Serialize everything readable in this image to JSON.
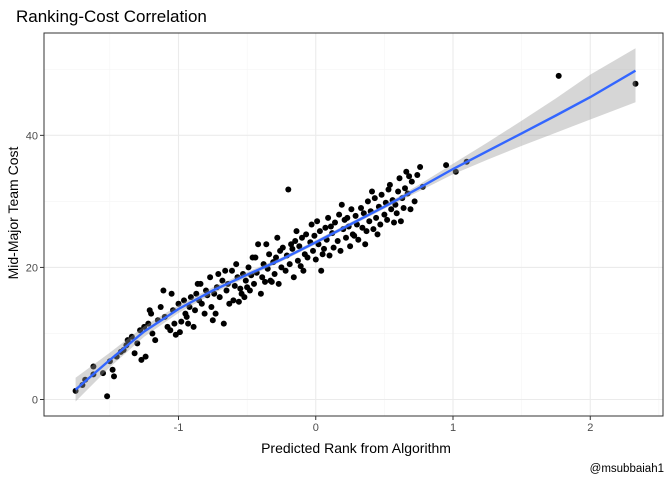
{
  "chart_data": {
    "type": "scatter",
    "title": "Ranking-Cost Correlation",
    "xlabel": "Predicted Rank from Algorithm",
    "ylabel": "Mid-Major Team Cost",
    "caption": "@msubbaiah1",
    "xlim": [
      -1.98,
      2.53
    ],
    "ylim": [
      -2.5,
      55.5
    ],
    "x_ticks": [
      -1,
      0,
      1,
      2
    ],
    "y_ticks": [
      0,
      20,
      40
    ],
    "x_tick_labels": [
      "-1",
      "0",
      "1",
      "2"
    ],
    "y_tick_labels": [
      "0",
      "20",
      "40"
    ],
    "grid": true,
    "legend": "none",
    "colors": {
      "points": "#000000",
      "fit_line": "#3366ff",
      "confidence_band": "#999999",
      "panel_border": "#333333",
      "grid_major": "#ebebeb",
      "grid_minor": "#f5f5f5"
    },
    "fit": {
      "method": "smooth",
      "x": [
        -1.75,
        -1.5,
        -1.25,
        -1.0,
        -0.75,
        -0.5,
        -0.25,
        0.0,
        0.25,
        0.5,
        0.75,
        1.0,
        1.25,
        1.5,
        1.75,
        2.0,
        2.33
      ],
      "y": [
        1.5,
        6.0,
        10.3,
        13.7,
        16.5,
        18.9,
        21.2,
        23.8,
        26.5,
        29.2,
        32.0,
        34.9,
        37.6,
        40.3,
        43.0,
        45.8,
        49.8
      ],
      "lower": [
        -0.3,
        4.9,
        9.5,
        13.1,
        16.0,
        18.5,
        20.9,
        23.5,
        26.2,
        28.9,
        31.5,
        34.1,
        36.3,
        38.4,
        40.4,
        42.4,
        45.0
      ],
      "upper": [
        3.3,
        7.1,
        11.1,
        14.3,
        17.0,
        19.3,
        21.5,
        24.1,
        26.8,
        29.5,
        32.5,
        35.7,
        38.9,
        42.2,
        45.6,
        49.2,
        53.2
      ]
    },
    "points": [
      [
        -1.75,
        1.3
      ],
      [
        -1.7,
        2.2
      ],
      [
        -1.68,
        3.0
      ],
      [
        -1.62,
        3.8
      ],
      [
        -1.62,
        5.0
      ],
      [
        -1.55,
        4.0
      ],
      [
        -1.52,
        0.5
      ],
      [
        -1.5,
        5.8
      ],
      [
        -1.48,
        4.5
      ],
      [
        -1.47,
        3.5
      ],
      [
        -1.45,
        6.5
      ],
      [
        -1.42,
        7.2
      ],
      [
        -1.4,
        7.5
      ],
      [
        -1.38,
        8.2
      ],
      [
        -1.37,
        9.0
      ],
      [
        -1.34,
        9.5
      ],
      [
        -1.32,
        7.0
      ],
      [
        -1.3,
        8.5
      ],
      [
        -1.28,
        10.5
      ],
      [
        -1.27,
        6.0
      ],
      [
        -1.25,
        11.0
      ],
      [
        -1.24,
        6.5
      ],
      [
        -1.22,
        11.5
      ],
      [
        -1.2,
        13.0
      ],
      [
        -1.19,
        10.0
      ],
      [
        -1.17,
        9.0
      ],
      [
        -1.15,
        12.0
      ],
      [
        -1.13,
        14.0
      ],
      [
        -1.11,
        16.5
      ],
      [
        -1.1,
        12.5
      ],
      [
        -1.08,
        11.0
      ],
      [
        -1.06,
        10.5
      ],
      [
        -1.04,
        13.5
      ],
      [
        -1.03,
        11.5
      ],
      [
        -1.02,
        9.8
      ],
      [
        -1.0,
        14.5
      ],
      [
        -0.99,
        10.2
      ],
      [
        -0.98,
        11.8
      ],
      [
        -0.96,
        15.0
      ],
      [
        -0.95,
        13.0
      ],
      [
        -0.94,
        12.5
      ],
      [
        -0.92,
        14.0
      ],
      [
        -0.91,
        15.5
      ],
      [
        -0.89,
        11.0
      ],
      [
        -0.88,
        13.5
      ],
      [
        -0.87,
        16.0
      ],
      [
        -0.85,
        15.0
      ],
      [
        -0.84,
        17.5
      ],
      [
        -0.83,
        14.5
      ],
      [
        -0.81,
        13.0
      ],
      [
        -0.8,
        16.5
      ],
      [
        -0.79,
        15.8
      ],
      [
        -0.77,
        18.5
      ],
      [
        -0.76,
        14.0
      ],
      [
        -0.75,
        12.0
      ],
      [
        -0.74,
        16.0
      ],
      [
        -0.72,
        17.0
      ],
      [
        -0.71,
        19.0
      ],
      [
        -0.7,
        15.5
      ],
      [
        -0.68,
        18.0
      ],
      [
        -0.67,
        11.5
      ],
      [
        -0.65,
        16.5
      ],
      [
        -0.64,
        17.5
      ],
      [
        -0.63,
        14.5
      ],
      [
        -0.61,
        19.5
      ],
      [
        -0.6,
        15.0
      ],
      [
        -0.59,
        17.2
      ],
      [
        -0.57,
        18.5
      ],
      [
        -0.56,
        14.8
      ],
      [
        -0.55,
        16.8
      ],
      [
        -0.53,
        19.0
      ],
      [
        -0.52,
        15.5
      ],
      [
        -0.51,
        18.0
      ],
      [
        -0.5,
        17.0
      ],
      [
        -0.49,
        20.0
      ],
      [
        -0.48,
        16.5
      ],
      [
        -0.47,
        18.8
      ],
      [
        -0.45,
        17.5
      ],
      [
        -0.44,
        21.5
      ],
      [
        -0.43,
        19.2
      ],
      [
        -0.42,
        23.5
      ],
      [
        -0.4,
        16.0
      ],
      [
        -0.39,
        18.5
      ],
      [
        -0.38,
        20.5
      ],
      [
        -0.37,
        17.8
      ],
      [
        -0.35,
        19.8
      ],
      [
        -0.34,
        22.0
      ],
      [
        -0.33,
        18.0
      ],
      [
        -0.31,
        20.8
      ],
      [
        -0.3,
        19.0
      ],
      [
        -0.29,
        21.5
      ],
      [
        -0.27,
        17.5
      ],
      [
        -0.26,
        22.5
      ],
      [
        -0.25,
        20.0
      ],
      [
        -0.24,
        23.0
      ],
      [
        -0.22,
        19.5
      ],
      [
        -0.21,
        21.8
      ],
      [
        -0.2,
        31.8
      ],
      [
        -0.19,
        20.5
      ],
      [
        -0.17,
        22.8
      ],
      [
        -0.16,
        18.5
      ],
      [
        -0.15,
        24.0
      ],
      [
        -0.13,
        21.0
      ],
      [
        -0.12,
        23.2
      ],
      [
        -0.11,
        20.2
      ],
      [
        -0.1,
        24.5
      ],
      [
        -0.08,
        22.0
      ],
      [
        -0.07,
        25.0
      ],
      [
        -0.06,
        21.5
      ],
      [
        -0.04,
        23.8
      ],
      [
        -0.03,
        26.5
      ],
      [
        -0.02,
        22.5
      ],
      [
        -0.01,
        24.8
      ],
      [
        0.0,
        21.2
      ],
      [
        0.01,
        27.0
      ],
      [
        0.02,
        23.5
      ],
      [
        0.03,
        25.5
      ],
      [
        0.04,
        19.5
      ],
      [
        0.06,
        22.8
      ],
      [
        0.07,
        26.0
      ],
      [
        0.08,
        24.2
      ],
      [
        0.09,
        27.5
      ],
      [
        0.1,
        21.8
      ],
      [
        0.12,
        25.2
      ],
      [
        0.13,
        23.0
      ],
      [
        0.14,
        26.8
      ],
      [
        0.16,
        24.0
      ],
      [
        0.17,
        28.0
      ],
      [
        0.18,
        22.5
      ],
      [
        0.2,
        25.8
      ],
      [
        0.21,
        27.2
      ],
      [
        0.22,
        24.5
      ],
      [
        0.24,
        26.2
      ],
      [
        0.25,
        23.2
      ],
      [
        0.26,
        28.8
      ],
      [
        0.27,
        25.0
      ],
      [
        0.29,
        27.8
      ],
      [
        0.3,
        26.5
      ],
      [
        0.31,
        24.2
      ],
      [
        0.33,
        29.0
      ],
      [
        0.34,
        26.0
      ],
      [
        0.35,
        28.2
      ],
      [
        0.37,
        25.5
      ],
      [
        0.38,
        30.0
      ],
      [
        0.39,
        27.0
      ],
      [
        0.4,
        28.5
      ],
      [
        0.42,
        25.8
      ],
      [
        0.43,
        30.5
      ],
      [
        0.44,
        27.5
      ],
      [
        0.46,
        29.2
      ],
      [
        0.47,
        26.5
      ],
      [
        0.48,
        31.0
      ],
      [
        0.5,
        28.0
      ],
      [
        0.51,
        29.8
      ],
      [
        0.52,
        27.2
      ],
      [
        0.54,
        32.5
      ],
      [
        0.55,
        28.8
      ],
      [
        0.56,
        30.2
      ],
      [
        0.58,
        29.5
      ],
      [
        0.59,
        28.2
      ],
      [
        0.6,
        31.5
      ],
      [
        0.61,
        33.5
      ],
      [
        0.63,
        30.5
      ],
      [
        0.64,
        29.0
      ],
      [
        0.65,
        32.0
      ],
      [
        0.66,
        34.5
      ],
      [
        0.67,
        31.2
      ],
      [
        0.69,
        28.8
      ],
      [
        0.7,
        33.0
      ],
      [
        0.72,
        30.0
      ],
      [
        0.74,
        34.0
      ],
      [
        0.76,
        35.2
      ],
      [
        0.78,
        32.2
      ],
      [
        0.95,
        35.5
      ],
      [
        1.02,
        34.5
      ],
      [
        1.1,
        36.0
      ],
      [
        1.77,
        49.0
      ],
      [
        2.33,
        47.8
      ],
      [
        -0.58,
        20.5
      ],
      [
        -0.36,
        23.5
      ],
      [
        -0.14,
        25.5
      ],
      [
        0.05,
        22.0
      ],
      [
        0.23,
        27.5
      ],
      [
        0.45,
        25.0
      ],
      [
        0.62,
        27.0
      ],
      [
        0.41,
        31.5
      ],
      [
        0.19,
        29.5
      ],
      [
        -0.09,
        19.5
      ],
      [
        -0.28,
        24.5
      ],
      [
        -0.46,
        21.5
      ],
      [
        -0.66,
        19.5
      ],
      [
        -0.86,
        17.5
      ],
      [
        -1.05,
        16.0
      ],
      [
        -1.21,
        13.5
      ],
      [
        -0.93,
        11.5
      ],
      [
        -0.73,
        13.0
      ],
      [
        -0.54,
        16.0
      ],
      [
        -0.32,
        17.8
      ],
      [
        -0.18,
        23.5
      ],
      [
        0.11,
        26.2
      ],
      [
        0.28,
        24.8
      ],
      [
        0.36,
        23.5
      ],
      [
        0.53,
        31.8
      ],
      [
        0.68,
        33.8
      ],
      [
        0.57,
        26.8
      ]
    ]
  }
}
